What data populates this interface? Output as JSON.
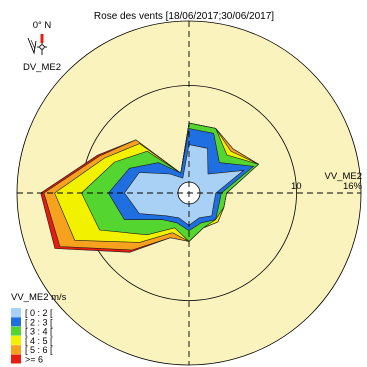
{
  "chart_data": {
    "type": "wind-rose",
    "title": "Rose des vents [18/06/2017;30/06/2017]",
    "north_label": "0° N",
    "direction_var": "DV_ME2",
    "speed_var": "VV_ME2",
    "ring_labels": [
      "10",
      "16%"
    ],
    "legend_title": "VV_ME2 m/s",
    "rmax": 16,
    "directions": [
      0,
      22.5,
      45,
      67.5,
      90,
      112.5,
      135,
      157.5,
      180,
      202.5,
      225,
      247.5,
      270,
      292.5,
      315,
      337.5
    ],
    "bins": [
      {
        "label": "[ 0 : 2 [",
        "color": "#a9d1f5",
        "cum": [
          4.5,
          4.5,
          2.5,
          5.5,
          2.5,
          2.5,
          3.0,
          2.5,
          3.0,
          2.5,
          3.0,
          5.0,
          6.0,
          5.0,
          2.5,
          1.5
        ]
      },
      {
        "label": "[ 2 : 3 [",
        "color": "#1f6fe0",
        "cum": [
          6.0,
          6.0,
          4.0,
          6.5,
          3.0,
          3.0,
          3.5,
          3.0,
          3.5,
          3.0,
          3.5,
          6.5,
          7.5,
          6.0,
          4.0,
          2.0
        ]
      },
      {
        "label": "[ 3 : 4 [",
        "color": "#55d52f",
        "cum": [
          6.5,
          6.5,
          5.0,
          7.0,
          3.5,
          3.5,
          3.5,
          3.5,
          4.5,
          3.5,
          5.5,
          9.0,
          10.0,
          7.5,
          5.5,
          2.0
        ]
      },
      {
        "label": "[ 4 : 5 [",
        "color": "#f2f200",
        "cum": [
          6.5,
          6.5,
          5.5,
          7.0,
          3.5,
          3.5,
          3.8,
          3.5,
          4.5,
          4.0,
          6.5,
          11.5,
          12.5,
          8.5,
          6.5,
          2.0
        ]
      },
      {
        "label": "[ 5 : 6 [",
        "color": "#f7a21e",
        "cum": [
          6.5,
          6.5,
          5.8,
          7.0,
          3.5,
          3.5,
          3.8,
          3.5,
          4.5,
          4.5,
          7.5,
          13.0,
          13.5,
          9.0,
          7.0,
          2.0
        ]
      },
      {
        "label": ">= 6",
        "color": "#e81c0c",
        "cum": [
          6.5,
          6.5,
          5.8,
          7.0,
          3.5,
          3.5,
          3.8,
          3.5,
          4.5,
          4.5,
          7.8,
          13.5,
          13.8,
          9.2,
          7.0,
          2.0
        ]
      }
    ],
    "colors": {
      "disc": "#fbf3be",
      "calm": "#ffffff",
      "outline": "#1a1a1a",
      "axis": "#000000"
    }
  }
}
